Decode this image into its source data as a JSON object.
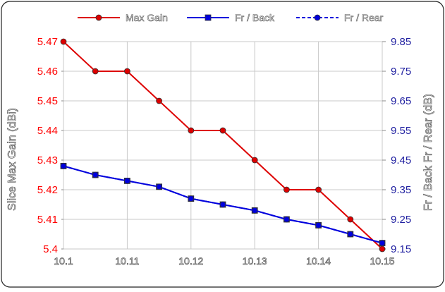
{
  "chart_data": {
    "type": "line",
    "categories": [
      "10.1",
      "10.11",
      "10.12",
      "10.13",
      "10.14",
      "10.15"
    ],
    "x": [
      10.1,
      10.105,
      10.11,
      10.115,
      10.12,
      10.125,
      10.13,
      10.135,
      10.14,
      10.145,
      10.15
    ],
    "xlim": [
      10.1,
      10.15
    ],
    "left_axis": {
      "label": "Slice Max Gain (dBi)",
      "range": [
        5.4,
        5.47
      ],
      "ticks": [
        "5.4",
        "5.41",
        "5.42",
        "5.43",
        "5.44",
        "5.45",
        "5.46",
        "5.47"
      ],
      "color": "#ff0000"
    },
    "right_axis": {
      "label": "Fr / Back  Fr / Rear (dB)",
      "range": [
        9.15,
        9.85
      ],
      "ticks": [
        "9.15",
        "9.25",
        "9.35",
        "9.45",
        "9.55",
        "9.65",
        "9.75",
        "9.85"
      ],
      "color": "#1f1fa0"
    },
    "legend_position": "top",
    "series": [
      {
        "name": "Max Gain",
        "axis": "left",
        "color": "#dd0000",
        "line": "solid",
        "marker": "circle",
        "values": [
          5.47,
          5.46,
          5.46,
          5.45,
          5.44,
          5.44,
          5.43,
          5.42,
          5.42,
          5.41,
          5.4
        ]
      },
      {
        "name": "Fr / Back",
        "axis": "right",
        "color": "#0000dd",
        "line": "solid",
        "marker": "square",
        "values": [
          9.43,
          9.4,
          9.38,
          9.36,
          9.32,
          9.3,
          9.28,
          9.25,
          9.23,
          9.2,
          9.17
        ]
      },
      {
        "name": "Fr / Rear",
        "axis": "right",
        "color": "#0000dd",
        "line": "dashed",
        "marker": "circle",
        "values": [
          9.43,
          9.4,
          9.38,
          9.36,
          9.32,
          9.3,
          9.28,
          9.25,
          9.23,
          9.2,
          9.17
        ]
      }
    ]
  }
}
